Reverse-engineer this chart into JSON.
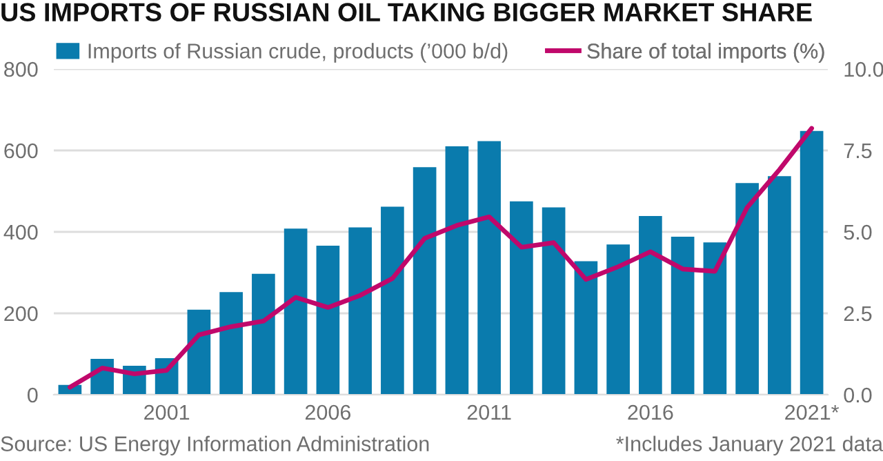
{
  "chart_data": {
    "type": "bar",
    "title": "US IMPORTS OF RUSSIAN OIL TAKING BIGGER MARKET SHARE",
    "categories": [
      null,
      null,
      null,
      "2001",
      null,
      null,
      null,
      null,
      "2006",
      null,
      null,
      null,
      null,
      "2011",
      null,
      null,
      null,
      null,
      "2016",
      null,
      null,
      null,
      null,
      "2021*"
    ],
    "series": [
      {
        "name": "Imports of Russian crude, products (’000 b/d)",
        "color": "#0a7bad",
        "values": [
          24,
          88,
          71,
          90,
          209,
          252,
          297,
          408,
          366,
          411,
          462,
          559,
          610,
          623,
          475,
          460,
          328,
          369,
          439,
          388,
          374,
          520,
          537,
          648
        ]
      },
      {
        "name": "Share of total imports (%)",
        "type": "line",
        "axis": "y2",
        "color": "#c0086b",
        "values": [
          0.23,
          0.82,
          0.64,
          0.75,
          1.84,
          2.09,
          2.26,
          2.99,
          2.68,
          3.05,
          3.57,
          4.8,
          5.2,
          5.46,
          4.53,
          4.67,
          3.54,
          3.93,
          4.39,
          3.86,
          3.79,
          5.75,
          6.91,
          8.18
        ]
      }
    ],
    "ylim": [
      0,
      800
    ],
    "yticks": [
      0,
      200,
      400,
      600,
      800
    ],
    "y2lim": [
      0,
      10
    ],
    "y2ticks": [
      {
        "value": 0,
        "label": "0.0"
      },
      {
        "value": 2.5,
        "label": "2.5"
      },
      {
        "value": 5,
        "label": "5.0"
      },
      {
        "value": 7.5,
        "label": "7.5"
      },
      {
        "value": 10,
        "label": "10.0"
      }
    ],
    "grid": "y",
    "legend": "top",
    "line_style": "solid",
    "annotations": [
      "Source: US Energy Information Administration",
      "*Includes January 2021 data"
    ]
  }
}
